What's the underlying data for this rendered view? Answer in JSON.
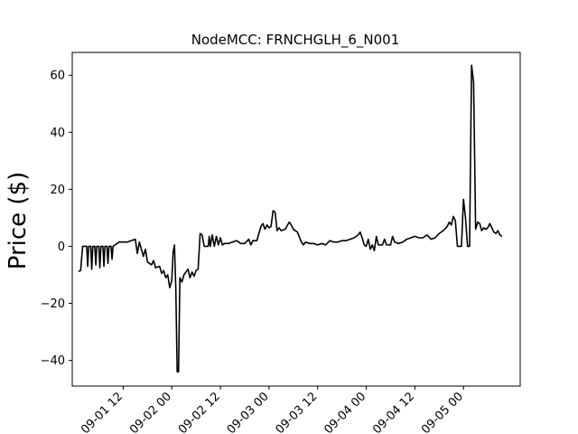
{
  "chart_data": {
    "type": "line",
    "title": "NodeMCC: FRNCHGLH_6_N001",
    "xlabel": "",
    "ylabel": "Price ($)",
    "x_tick_labels": [
      "09-01 12",
      "09-02 00",
      "09-02 12",
      "09-03 00",
      "09-03 12",
      "09-04 00",
      "09-04 12",
      "09-05 00"
    ],
    "y_ticks": [
      -40,
      -20,
      0,
      20,
      40,
      60
    ],
    "y_tick_labels": [
      "−40",
      "−20",
      "0",
      "20",
      "40",
      "60"
    ],
    "xlim": [
      "08-31 23:26",
      "09-05 14:00"
    ],
    "ylim": [
      -49,
      68
    ],
    "grid": false,
    "line_color": "#000000",
    "series": [
      {
        "points": [
          [
            "09-01 01:00",
            -8.8
          ],
          [
            "09-01 01:30",
            -8.5
          ],
          [
            "09-01 02:00",
            0.0
          ],
          [
            "09-01 03:00",
            0.0
          ],
          [
            "09-01 03:15",
            -7.0
          ],
          [
            "09-01 03:30",
            0.0
          ],
          [
            "09-01 04:00",
            0.0
          ],
          [
            "09-01 04:15",
            -8.0
          ],
          [
            "09-01 04:30",
            0.0
          ],
          [
            "09-01 05:00",
            0.0
          ],
          [
            "09-01 05:15",
            -6.5
          ],
          [
            "09-01 05:30",
            0.0
          ],
          [
            "09-01 06:00",
            0.0
          ],
          [
            "09-01 06:15",
            -7.5
          ],
          [
            "09-01 06:30",
            0.0
          ],
          [
            "09-01 07:00",
            0.0
          ],
          [
            "09-01 07:15",
            -7.0
          ],
          [
            "09-01 07:30",
            0.0
          ],
          [
            "09-01 08:00",
            0.0
          ],
          [
            "09-01 08:15",
            -6.0
          ],
          [
            "09-01 08:30",
            0.0
          ],
          [
            "09-01 09:00",
            0.0
          ],
          [
            "09-01 09:15",
            -4.5
          ],
          [
            "09-01 09:30",
            0.0
          ],
          [
            "09-01 10:00",
            0.5
          ],
          [
            "09-01 11:00",
            1.5
          ],
          [
            "09-01 12:00",
            1.5
          ],
          [
            "09-01 13:00",
            1.5
          ],
          [
            "09-01 14:00",
            2.0
          ],
          [
            "09-01 15:00",
            2.5
          ],
          [
            "09-01 15:30",
            -2.5
          ],
          [
            "09-01 16:00",
            1.5
          ],
          [
            "09-01 17:00",
            -3.5
          ],
          [
            "09-01 17:30",
            -1.0
          ],
          [
            "09-01 18:00",
            -5.5
          ],
          [
            "09-01 19:00",
            -6.5
          ],
          [
            "09-01 19:30",
            -5.0
          ],
          [
            "09-01 20:00",
            -7.5
          ],
          [
            "09-01 21:00",
            -7.0
          ],
          [
            "09-01 21:30",
            -9.5
          ],
          [
            "09-01 22:00",
            -8.5
          ],
          [
            "09-01 22:30",
            -11.0
          ],
          [
            "09-01 23:00",
            -10.0
          ],
          [
            "09-01 23:30",
            -14.5
          ],
          [
            "09-02 00:00",
            -12.0
          ],
          [
            "09-02 00:20",
            -2.0
          ],
          [
            "09-02 00:40",
            0.5
          ],
          [
            "09-02 01:00",
            -15.0
          ],
          [
            "09-02 01:20",
            -44.0
          ],
          [
            "09-02 01:40",
            -44.0
          ],
          [
            "09-02 02:00",
            -11.0
          ],
          [
            "09-02 02:30",
            -12.5
          ],
          [
            "09-02 03:00",
            -10.0
          ],
          [
            "09-02 04:00",
            -8.0
          ],
          [
            "09-02 04:30",
            -11.0
          ],
          [
            "09-02 05:00",
            -9.0
          ],
          [
            "09-02 05:30",
            -10.5
          ],
          [
            "09-02 06:00",
            -8.5
          ],
          [
            "09-02 06:30",
            -8.0
          ],
          [
            "09-02 07:00",
            4.5
          ],
          [
            "09-02 07:30",
            4.0
          ],
          [
            "09-02 08:00",
            0.0
          ],
          [
            "09-02 09:00",
            0.0
          ],
          [
            "09-02 09:15",
            3.5
          ],
          [
            "09-02 09:30",
            0.0
          ],
          [
            "09-02 10:00",
            4.0
          ],
          [
            "09-02 10:30",
            0.0
          ],
          [
            "09-02 11:00",
            3.5
          ],
          [
            "09-02 11:30",
            0.5
          ],
          [
            "09-02 12:00",
            3.0
          ],
          [
            "09-02 12:30",
            0.5
          ],
          [
            "09-02 13:00",
            1.0
          ],
          [
            "09-02 14:00",
            1.0
          ],
          [
            "09-02 15:00",
            1.5
          ],
          [
            "09-02 16:00",
            2.0
          ],
          [
            "09-02 17:00",
            1.0
          ],
          [
            "09-02 18:00",
            1.0
          ],
          [
            "09-02 19:00",
            2.5
          ],
          [
            "09-02 19:30",
            0.5
          ],
          [
            "09-02 20:00",
            2.0
          ],
          [
            "09-02 21:00",
            2.0
          ],
          [
            "09-02 22:00",
            7.0
          ],
          [
            "09-02 22:30",
            8.0
          ],
          [
            "09-02 23:00",
            6.0
          ],
          [
            "09-02 23:30",
            7.5
          ],
          [
            "09-03 00:00",
            6.5
          ],
          [
            "09-03 00:30",
            7.0
          ],
          [
            "09-03 01:00",
            12.5
          ],
          [
            "09-03 01:30",
            12.0
          ],
          [
            "09-03 02:00",
            5.5
          ],
          [
            "09-03 02:30",
            6.5
          ],
          [
            "09-03 03:00",
            5.5
          ],
          [
            "09-03 04:00",
            6.0
          ],
          [
            "09-03 05:00",
            8.5
          ],
          [
            "09-03 05:30",
            7.5
          ],
          [
            "09-03 06:00",
            6.0
          ],
          [
            "09-03 07:00",
            5.0
          ],
          [
            "09-03 08:00",
            1.5
          ],
          [
            "09-03 08:30",
            0.5
          ],
          [
            "09-03 09:00",
            1.5
          ],
          [
            "09-03 10:00",
            1.0
          ],
          [
            "09-03 11:00",
            1.0
          ],
          [
            "09-03 12:00",
            0.5
          ],
          [
            "09-03 13:00",
            1.0
          ],
          [
            "09-03 14:00",
            0.5
          ],
          [
            "09-03 15:00",
            2.0
          ],
          [
            "09-03 16:00",
            1.5
          ],
          [
            "09-03 17:00",
            1.5
          ],
          [
            "09-03 18:00",
            2.0
          ],
          [
            "09-03 19:00",
            2.0
          ],
          [
            "09-03 20:00",
            2.5
          ],
          [
            "09-03 21:00",
            3.0
          ],
          [
            "09-03 22:00",
            4.0
          ],
          [
            "09-03 22:30",
            5.0
          ],
          [
            "09-03 23:00",
            3.0
          ],
          [
            "09-03 23:30",
            0.5
          ],
          [
            "09-04 00:00",
            0.0
          ],
          [
            "09-04 00:30",
            2.5
          ],
          [
            "09-04 01:00",
            -1.0
          ],
          [
            "09-04 01:30",
            0.5
          ],
          [
            "09-04 02:00",
            -1.5
          ],
          [
            "09-04 02:30",
            3.5
          ],
          [
            "09-04 03:00",
            0.5
          ],
          [
            "09-04 04:00",
            0.5
          ],
          [
            "09-04 04:30",
            2.5
          ],
          [
            "09-04 05:00",
            0.5
          ],
          [
            "09-04 06:00",
            0.5
          ],
          [
            "09-04 06:30",
            3.5
          ],
          [
            "09-04 07:00",
            1.5
          ],
          [
            "09-04 08:00",
            1.0
          ],
          [
            "09-04 09:00",
            1.5
          ],
          [
            "09-04 10:00",
            2.5
          ],
          [
            "09-04 11:00",
            3.0
          ],
          [
            "09-04 12:00",
            3.5
          ],
          [
            "09-04 13:00",
            3.0
          ],
          [
            "09-04 14:00",
            3.0
          ],
          [
            "09-04 15:00",
            4.0
          ],
          [
            "09-04 16:00",
            2.5
          ],
          [
            "09-04 17:00",
            3.0
          ],
          [
            "09-04 18:00",
            4.5
          ],
          [
            "09-04 19:00",
            5.5
          ],
          [
            "09-04 20:00",
            7.0
          ],
          [
            "09-04 20:30",
            8.5
          ],
          [
            "09-04 21:00",
            7.5
          ],
          [
            "09-04 21:30",
            10.5
          ],
          [
            "09-04 22:00",
            9.0
          ],
          [
            "09-04 22:30",
            0.0
          ],
          [
            "09-04 23:00",
            0.0
          ],
          [
            "09-04 23:30",
            0.0
          ],
          [
            "09-05 00:00",
            16.5
          ],
          [
            "09-05 00:30",
            10.0
          ],
          [
            "09-05 01:00",
            0.0
          ],
          [
            "09-05 01:30",
            0.0
          ],
          [
            "09-05 02:00",
            63.5
          ],
          [
            "09-05 02:30",
            57.5
          ],
          [
            "09-05 03:00",
            6.0
          ],
          [
            "09-05 03:30",
            8.5
          ],
          [
            "09-05 04:00",
            8.0
          ],
          [
            "09-05 04:30",
            5.5
          ],
          [
            "09-05 05:00",
            6.5
          ],
          [
            "09-05 05:30",
            6.0
          ],
          [
            "09-05 06:00",
            6.5
          ],
          [
            "09-05 06:30",
            8.0
          ],
          [
            "09-05 07:00",
            6.5
          ],
          [
            "09-05 07:30",
            5.0
          ],
          [
            "09-05 08:00",
            4.5
          ],
          [
            "09-05 08:30",
            5.5
          ],
          [
            "09-05 09:00",
            4.0
          ],
          [
            "09-05 09:30",
            3.5
          ]
        ]
      }
    ]
  }
}
